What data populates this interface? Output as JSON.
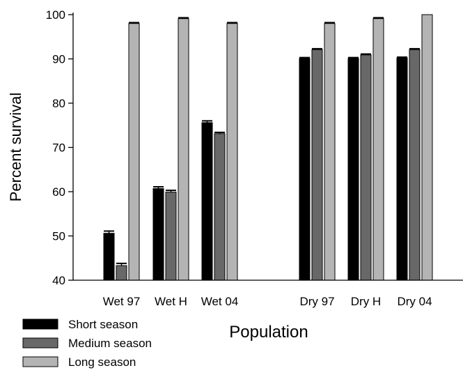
{
  "chart_data": {
    "type": "bar",
    "xlabel": "Population",
    "ylabel": "Percent survival",
    "ylim": [
      40,
      100
    ],
    "yticks": [
      40,
      50,
      60,
      70,
      80,
      90,
      100
    ],
    "grid": false,
    "legend_position": "bottom-left",
    "categories": [
      "Wet 97",
      "Wet H",
      "Wet 04",
      "Dry 97",
      "Dry H",
      "Dry 04"
    ],
    "series": [
      {
        "name": "Short season",
        "color": "#000000",
        "values": [
          50.6,
          60.7,
          75.6,
          90.1,
          90.1,
          90.2
        ],
        "errors": [
          0.5,
          0.4,
          0.4,
          0.2,
          0.2,
          0.2
        ]
      },
      {
        "name": "Medium season",
        "color": "#686868",
        "values": [
          43.3,
          59.9,
          73.1,
          92.1,
          90.9,
          92.1
        ],
        "errors": [
          0.5,
          0.4,
          0.3,
          0.2,
          0.2,
          0.2
        ]
      },
      {
        "name": "Long season",
        "color": "#b4b4b4",
        "values": [
          98.0,
          99.1,
          98.0,
          98.0,
          99.1,
          100.0
        ],
        "errors": [
          0.2,
          0.2,
          0.2,
          0.2,
          0.2,
          0.0
        ]
      }
    ]
  }
}
